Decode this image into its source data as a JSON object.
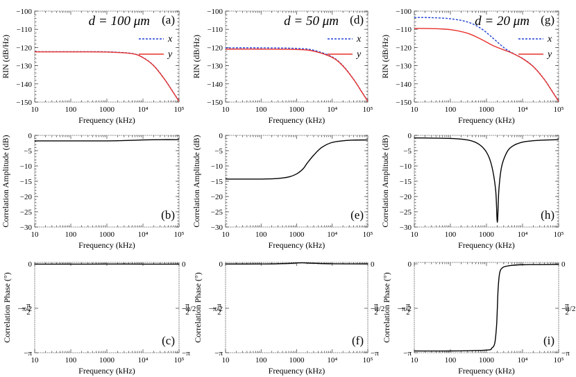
{
  "figure": {
    "x_label": "Frequency (kHz)"
  },
  "chart_data": [
    {
      "id": "a",
      "type": "line",
      "row": "rin",
      "column": 0,
      "panel_label": "(a)",
      "annotation": "d = 100 μm",
      "ylabel": "RIN (dB/Hz)",
      "xlim": [
        10,
        100000
      ],
      "xscale": "log",
      "x_ticks": [
        {
          "v": 10,
          "label": "10"
        },
        {
          "v": 100,
          "label": "100"
        },
        {
          "v": 1000,
          "label": "1000"
        },
        {
          "v": 10000,
          "label": "10⁴"
        },
        {
          "v": 100000,
          "label": "10⁵"
        }
      ],
      "ylim": [
        -150,
        -100
      ],
      "y_ticks": [
        {
          "v": -100,
          "label": "−100"
        },
        {
          "v": -110,
          "label": "−110"
        },
        {
          "v": -120,
          "label": "−120"
        },
        {
          "v": -130,
          "label": "−130"
        },
        {
          "v": -140,
          "label": "−140"
        },
        {
          "v": -150,
          "label": "−150"
        }
      ],
      "legend": [
        {
          "name": "x",
          "color": "#1f3fd6",
          "dash": "3,2"
        },
        {
          "name": "y",
          "color": "#e8302a",
          "dash": ""
        }
      ],
      "series": [
        {
          "name": "x",
          "color": "#1f3fd6",
          "dash": "3,2",
          "x": [
            10,
            100,
            1000,
            5000,
            10000,
            20000,
            40000,
            70000,
            100000
          ],
          "y": [
            -122.3,
            -122.3,
            -122.4,
            -123.3,
            -125.5,
            -130.0,
            -137.5,
            -144.8,
            -149.5
          ]
        },
        {
          "name": "y",
          "color": "#e8302a",
          "dash": "",
          "x": [
            10,
            100,
            1000,
            5000,
            10000,
            20000,
            40000,
            70000,
            100000
          ],
          "y": [
            -122.4,
            -122.4,
            -122.5,
            -123.4,
            -125.6,
            -130.1,
            -137.6,
            -144.9,
            -149.6
          ]
        }
      ]
    },
    {
      "id": "d",
      "type": "line",
      "row": "rin",
      "column": 1,
      "panel_label": "(d)",
      "annotation": "d = 50 μm",
      "ylabel": "RIN (dB/Hz)",
      "xlim": [
        10,
        100000
      ],
      "xscale": "log",
      "x_ticks": [
        {
          "v": 10,
          "label": "10"
        },
        {
          "v": 100,
          "label": "100"
        },
        {
          "v": 1000,
          "label": "1000"
        },
        {
          "v": 10000,
          "label": "10⁴"
        },
        {
          "v": 100000,
          "label": "10⁵"
        }
      ],
      "ylim": [
        -150,
        -100
      ],
      "y_ticks": [
        {
          "v": -100,
          "label": "−100"
        },
        {
          "v": -110,
          "label": "−110"
        },
        {
          "v": -120,
          "label": "−120"
        },
        {
          "v": -130,
          "label": "−130"
        },
        {
          "v": -140,
          "label": "−140"
        },
        {
          "v": -150,
          "label": "−150"
        }
      ],
      "legend": [
        {
          "name": "x",
          "color": "#1f3fd6",
          "dash": "3,2"
        },
        {
          "name": "y",
          "color": "#e8302a",
          "dash": ""
        }
      ],
      "series": [
        {
          "name": "x",
          "color": "#1f3fd6",
          "dash": "3,2",
          "x": [
            10,
            100,
            1000,
            3000,
            10000,
            20000,
            40000,
            70000,
            100000
          ],
          "y": [
            -120.2,
            -120.2,
            -120.5,
            -121.5,
            -125.2,
            -130.0,
            -137.5,
            -144.8,
            -149.5
          ]
        },
        {
          "name": "y",
          "color": "#e8302a",
          "dash": "",
          "x": [
            10,
            100,
            1000,
            3000,
            10000,
            20000,
            40000,
            70000,
            100000
          ],
          "y": [
            -120.9,
            -120.9,
            -121.1,
            -122.0,
            -125.5,
            -130.2,
            -137.6,
            -144.9,
            -149.6
          ]
        }
      ]
    },
    {
      "id": "g",
      "type": "line",
      "row": "rin",
      "column": 2,
      "panel_label": "(g)",
      "annotation": "d = 20 μm",
      "ylabel": "RIN (dB/Hz)",
      "xlim": [
        10,
        100000
      ],
      "xscale": "log",
      "x_ticks": [
        {
          "v": 10,
          "label": "10"
        },
        {
          "v": 100,
          "label": "100"
        },
        {
          "v": 1000,
          "label": "1000"
        },
        {
          "v": 10000,
          "label": "10⁴"
        },
        {
          "v": 100000,
          "label": "10⁵"
        }
      ],
      "ylim": [
        -150,
        -100
      ],
      "y_ticks": [
        {
          "v": -100,
          "label": "−100"
        },
        {
          "v": -110,
          "label": "−110"
        },
        {
          "v": -120,
          "label": "−120"
        },
        {
          "v": -130,
          "label": "−130"
        },
        {
          "v": -140,
          "label": "−140"
        },
        {
          "v": -150,
          "label": "−150"
        }
      ],
      "legend": [
        {
          "name": "x",
          "color": "#1f3fd6",
          "dash": "3,2"
        },
        {
          "name": "y",
          "color": "#e8302a",
          "dash": ""
        }
      ],
      "series": [
        {
          "name": "x",
          "color": "#1f3fd6",
          "dash": "3,2",
          "x": [
            10,
            30,
            100,
            300,
            700,
            1500,
            3000,
            5000,
            10000,
            20000,
            40000,
            70000,
            100000
          ],
          "y": [
            -103.5,
            -103.6,
            -104.2,
            -106.0,
            -109.5,
            -114.8,
            -120.0,
            -122.8,
            -126.0,
            -130.5,
            -137.5,
            -144.8,
            -149.5
          ]
        },
        {
          "name": "y",
          "color": "#e8302a",
          "dash": "",
          "x": [
            10,
            30,
            100,
            300,
            700,
            1500,
            3000,
            5000,
            10000,
            20000,
            40000,
            70000,
            100000
          ],
          "y": [
            -109.5,
            -109.6,
            -110.2,
            -112.2,
            -115.4,
            -118.9,
            -121.3,
            -123.0,
            -126.1,
            -130.6,
            -137.6,
            -144.9,
            -149.6
          ]
        }
      ]
    },
    {
      "id": "b",
      "type": "line",
      "row": "amp",
      "column": 0,
      "panel_label": "(b)",
      "annotation": "",
      "ylabel": "Correlation Amplitude (dB)",
      "xlim": [
        10,
        100000
      ],
      "xscale": "log",
      "x_ticks": [
        {
          "v": 10,
          "label": "10"
        },
        {
          "v": 100,
          "label": "100"
        },
        {
          "v": 1000,
          "label": "1000"
        },
        {
          "v": 10000,
          "label": "10⁴"
        },
        {
          "v": 100000,
          "label": "10⁵"
        }
      ],
      "ylim": [
        -30,
        0
      ],
      "y_ticks": [
        {
          "v": 0,
          "label": "0"
        },
        {
          "v": -5,
          "label": "−5"
        },
        {
          "v": -10,
          "label": "−10"
        },
        {
          "v": -15,
          "label": "−15"
        },
        {
          "v": -20,
          "label": "−20"
        },
        {
          "v": -25,
          "label": "−25"
        },
        {
          "v": -30,
          "label": "−30"
        }
      ],
      "legend": [],
      "series": [
        {
          "name": "amplitude",
          "color": "#000000",
          "dash": "",
          "x": [
            10,
            100,
            1000,
            3000,
            10000,
            30000,
            100000
          ],
          "y": [
            -1.8,
            -1.8,
            -1.8,
            -1.7,
            -1.5,
            -1.4,
            -1.4
          ]
        }
      ]
    },
    {
      "id": "e",
      "type": "line",
      "row": "amp",
      "column": 1,
      "panel_label": "(e)",
      "annotation": "",
      "ylabel": "Correlation Amplitude (dB)",
      "xlim": [
        10,
        100000
      ],
      "xscale": "log",
      "x_ticks": [
        {
          "v": 10,
          "label": "10"
        },
        {
          "v": 100,
          "label": "100"
        },
        {
          "v": 1000,
          "label": "1000"
        },
        {
          "v": 10000,
          "label": "10⁴"
        },
        {
          "v": 100000,
          "label": "10⁵"
        }
      ],
      "ylim": [
        -30,
        0
      ],
      "y_ticks": [
        {
          "v": 0,
          "label": "0"
        },
        {
          "v": -5,
          "label": "−5"
        },
        {
          "v": -10,
          "label": "−10"
        },
        {
          "v": -15,
          "label": "−15"
        },
        {
          "v": -20,
          "label": "−20"
        },
        {
          "v": -25,
          "label": "−25"
        },
        {
          "v": -30,
          "label": "−30"
        }
      ],
      "legend": [],
      "series": [
        {
          "name": "amplitude",
          "color": "#000000",
          "dash": "",
          "x": [
            10,
            100,
            300,
            600,
            1000,
            1500,
            2000,
            3000,
            5000,
            10000,
            30000,
            100000
          ],
          "y": [
            -14.3,
            -14.3,
            -14.1,
            -13.6,
            -12.6,
            -11.0,
            -9.0,
            -6.5,
            -4.0,
            -2.3,
            -1.6,
            -1.5
          ]
        }
      ]
    },
    {
      "id": "h",
      "type": "line",
      "row": "amp",
      "column": 2,
      "panel_label": "(h)",
      "annotation": "",
      "ylabel": "Correlation Amplitude (dB)",
      "xlim": [
        10,
        100000
      ],
      "xscale": "log",
      "x_ticks": [
        {
          "v": 10,
          "label": "10"
        },
        {
          "v": 100,
          "label": "100"
        },
        {
          "v": 1000,
          "label": "1000"
        },
        {
          "v": 10000,
          "label": "10⁴"
        },
        {
          "v": 100000,
          "label": "10⁵"
        }
      ],
      "ylim": [
        -30,
        0
      ],
      "y_ticks": [
        {
          "v": 0,
          "label": "0"
        },
        {
          "v": -5,
          "label": "−5"
        },
        {
          "v": -10,
          "label": "−10"
        },
        {
          "v": -15,
          "label": "−15"
        },
        {
          "v": -20,
          "label": "−20"
        },
        {
          "v": -25,
          "label": "−25"
        },
        {
          "v": -30,
          "label": "−30"
        }
      ],
      "legend": [],
      "series": [
        {
          "name": "amplitude",
          "color": "#000000",
          "dash": "",
          "x": [
            10,
            100,
            300,
            600,
            1000,
            1400,
            1800,
            2000,
            2200,
            2600,
            3500,
            5000,
            10000,
            30000,
            100000
          ],
          "y": [
            -0.8,
            -1.0,
            -1.5,
            -2.8,
            -5.5,
            -10.0,
            -18.0,
            -28.5,
            -18.0,
            -10.5,
            -6.0,
            -3.7,
            -2.2,
            -1.6,
            -1.4
          ]
        }
      ]
    },
    {
      "id": "c",
      "type": "line",
      "row": "phase",
      "column": 0,
      "panel_label": "(c)",
      "annotation": "",
      "ylabel": "Correlation Phase (°)",
      "xlim": [
        10,
        100000
      ],
      "xscale": "log",
      "x_ticks": [
        {
          "v": 10,
          "label": "10"
        },
        {
          "v": 100,
          "label": "100"
        },
        {
          "v": 1000,
          "label": "1000"
        },
        {
          "v": 10000,
          "label": "10⁴"
        },
        {
          "v": 100000,
          "label": "10⁵"
        }
      ],
      "ylim": [
        -3.14159,
        0.05
      ],
      "y_ticks": [
        {
          "v": 0,
          "label": "0"
        },
        {
          "v": -1.5708,
          "label": "−π/2"
        },
        {
          "v": -3.14159,
          "label": "−π"
        }
      ],
      "legend": [],
      "series": [
        {
          "name": "phase",
          "color": "#000000",
          "dash": "",
          "x": [
            10,
            100,
            1000,
            3000,
            10000,
            100000
          ],
          "y": [
            -0.01,
            -0.01,
            -0.008,
            -0.005,
            -0.01,
            -0.01
          ]
        }
      ]
    },
    {
      "id": "f",
      "type": "line",
      "row": "phase",
      "column": 1,
      "panel_label": "(f)",
      "annotation": "",
      "ylabel": "Correlation Phase (°)",
      "xlim": [
        10,
        100000
      ],
      "xscale": "log",
      "x_ticks": [
        {
          "v": 10,
          "label": "10"
        },
        {
          "v": 100,
          "label": "100"
        },
        {
          "v": 1000,
          "label": "1000"
        },
        {
          "v": 10000,
          "label": "10⁴"
        },
        {
          "v": 100000,
          "label": "10⁵"
        }
      ],
      "ylim": [
        -3.14159,
        0.05
      ],
      "y_ticks": [
        {
          "v": 0,
          "label": "0"
        },
        {
          "v": -1.5708,
          "label": "−π/2"
        },
        {
          "v": -3.14159,
          "label": "−π"
        }
      ],
      "legend": [],
      "series": [
        {
          "name": "phase",
          "color": "#000000",
          "dash": "",
          "x": [
            10,
            100,
            500,
            1000,
            1500,
            3000,
            10000,
            100000
          ],
          "y": [
            -0.005,
            -0.004,
            0.01,
            0.03,
            0.035,
            0.02,
            0.003,
            -0.002
          ]
        }
      ]
    },
    {
      "id": "i",
      "type": "line",
      "row": "phase",
      "column": 2,
      "panel_label": "(i)",
      "annotation": "",
      "ylabel": "Correlation Phase (°)",
      "xlim": [
        10,
        100000
      ],
      "xscale": "log",
      "x_ticks": [
        {
          "v": 10,
          "label": "10"
        },
        {
          "v": 100,
          "label": "100"
        },
        {
          "v": 1000,
          "label": "1000"
        },
        {
          "v": 10000,
          "label": "10⁴"
        },
        {
          "v": 100000,
          "label": "10⁵"
        }
      ],
      "ylim": [
        -3.14159,
        0.05
      ],
      "y_ticks": [
        {
          "v": 0,
          "label": "0"
        },
        {
          "v": -1.5708,
          "label": "−π/2"
        },
        {
          "v": -3.14159,
          "label": "−π"
        }
      ],
      "legend": [],
      "series": [
        {
          "name": "phase",
          "color": "#000000",
          "dash": "",
          "x": [
            10,
            100,
            1000,
            1400,
            1700,
            1900,
            2000,
            2100,
            2300,
            2700,
            4000,
            10000,
            100000
          ],
          "y": [
            -3.08,
            -3.08,
            -3.05,
            -2.98,
            -2.8,
            -2.2,
            -1.57,
            -0.9,
            -0.35,
            -0.15,
            -0.07,
            -0.03,
            -0.02
          ]
        }
      ]
    }
  ]
}
